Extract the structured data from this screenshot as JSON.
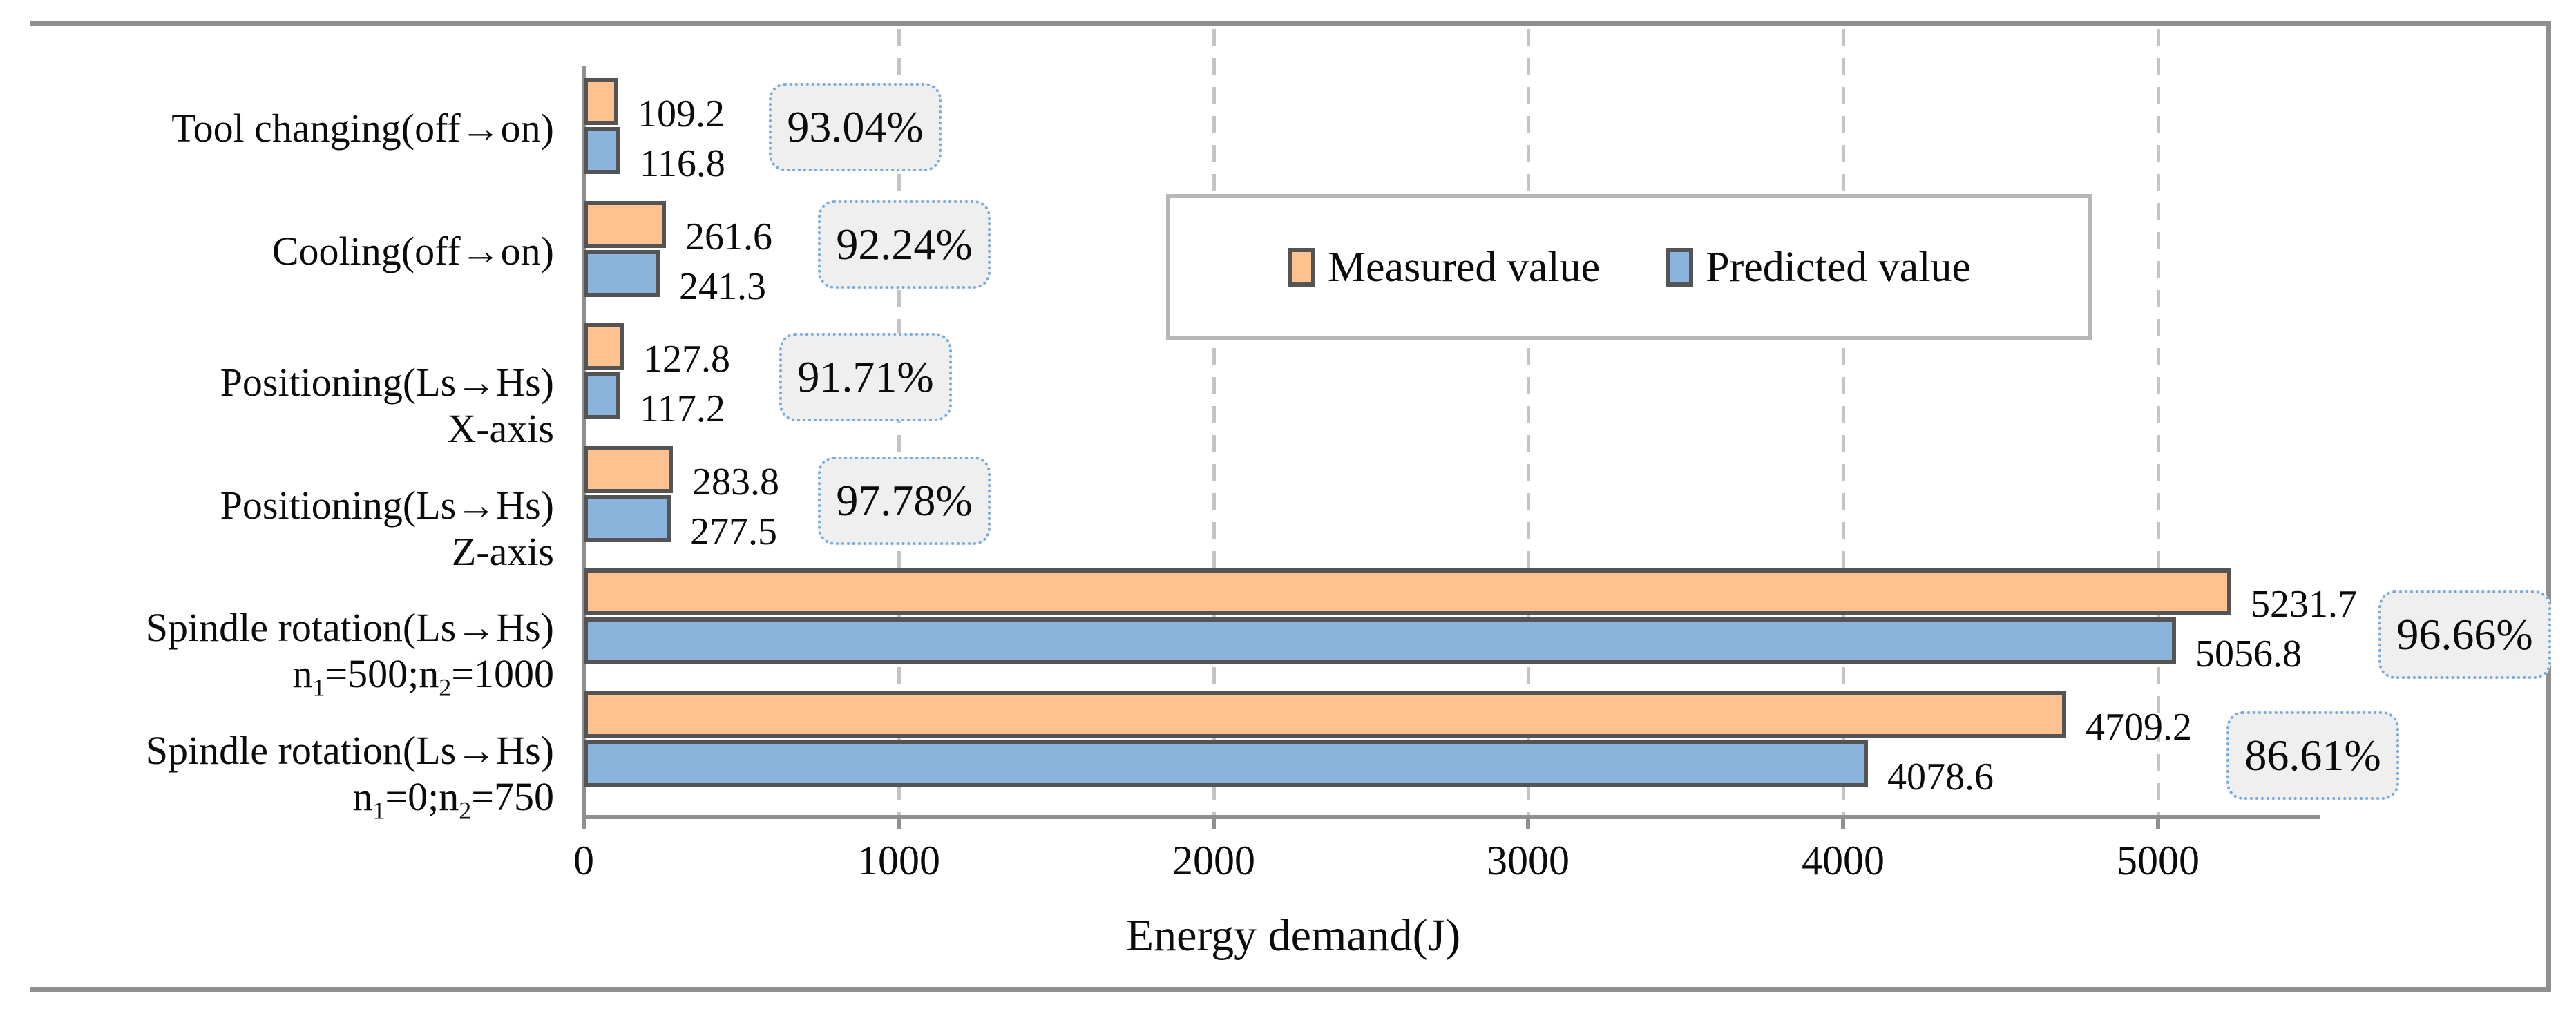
{
  "chart_data": {
    "type": "bar",
    "orientation": "horizontal",
    "xlabel": "Energy demand(J)",
    "xlim": [
      0,
      5500
    ],
    "x_ticks": [
      0,
      1000,
      2000,
      3000,
      4000,
      5000
    ],
    "grid": "vertical-dashed-every-1000",
    "legend_position": "top-right-inside",
    "categories": [
      {
        "line1": "Tool changing(off→on)",
        "line2": ""
      },
      {
        "line1": "Cooling(off→on)",
        "line2": ""
      },
      {
        "line1": "Positioning(Ls→Hs)",
        "line2": "X-axis"
      },
      {
        "line1": "Positioning(Ls→Hs)",
        "line2": "Z-axis"
      },
      {
        "line1": "Spindle rotation(Ls→Hs)",
        "line2": "n₁=500;n₂=1000"
      },
      {
        "line1": "Spindle rotation(Ls→Hs)",
        "line2": "n₁=0;n₂=750"
      }
    ],
    "series": [
      {
        "name": "Measured value",
        "color": "#fdc28f",
        "values": [
          109.2,
          261.6,
          127.8,
          283.8,
          5231.7,
          4709.2
        ]
      },
      {
        "name": "Predicted value",
        "color": "#8bb4dc",
        "values": [
          116.8,
          241.3,
          117.2,
          277.5,
          5056.8,
          4078.6
        ]
      }
    ],
    "accuracy_labels": [
      "93.04%",
      "92.24%",
      "91.71%",
      "97.78%",
      "96.66%",
      "86.61%"
    ]
  },
  "colors": {
    "measured_fill": "#fdc28f",
    "predicted_fill": "#8bb4dc",
    "bar_border": "#545454",
    "axis": "#8f8f8f",
    "gridline": "#c4c4c4",
    "badge_fill": "#efefef",
    "badge_border": "#74aadb",
    "legend_border": "#b7b7b7",
    "text": "#0b0b0b"
  }
}
